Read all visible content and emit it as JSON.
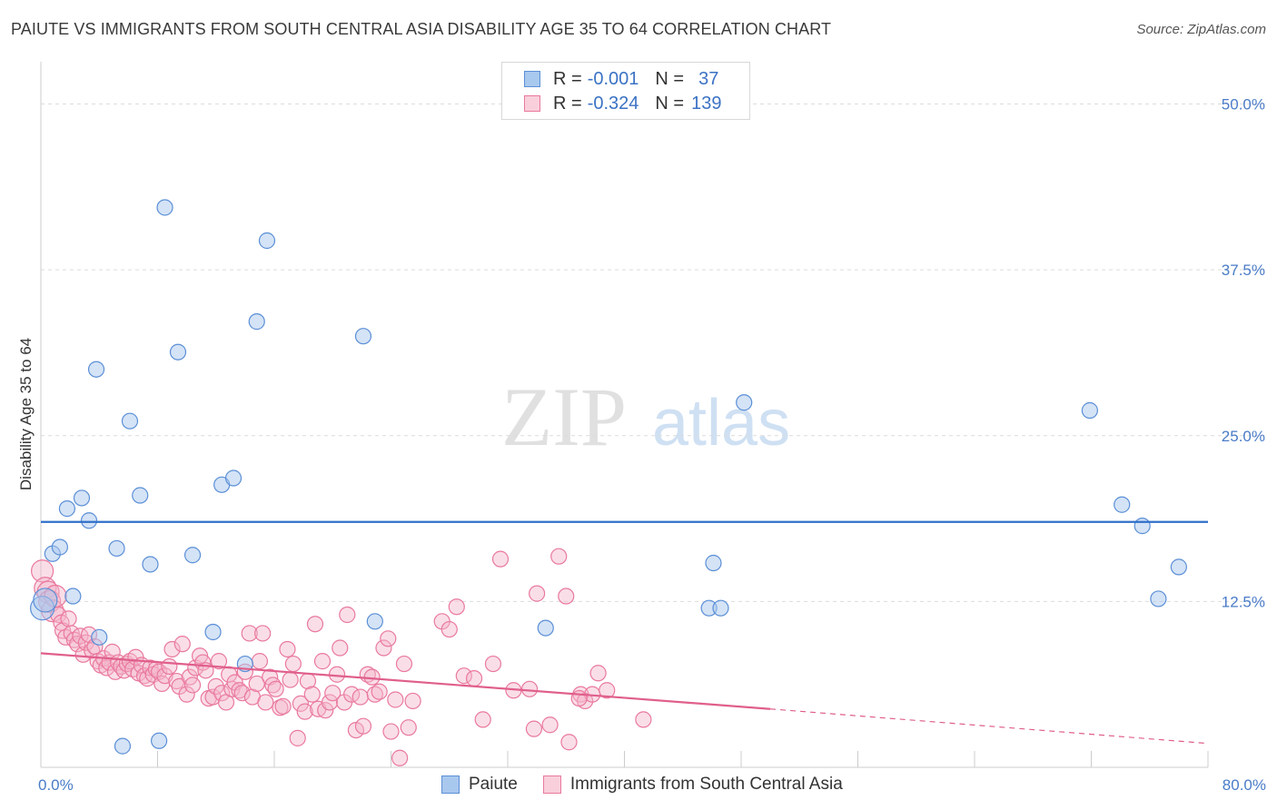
{
  "title": "PAIUTE VS IMMIGRANTS FROM SOUTH CENTRAL ASIA DISABILITY AGE 35 TO 64 CORRELATION CHART",
  "source": "Source: ZipAtlas.com",
  "watermark": {
    "zip": "ZIP",
    "atlas": "atlas"
  },
  "colors": {
    "blue_fill": "#a9c8ee",
    "blue_stroke": "#5b8fd6",
    "blue_line": "#2f6fc9",
    "pink_fill": "#f5b6c9",
    "pink_stroke": "#e9799d",
    "pink_line": "#e05f8c",
    "tick_text": "#4a7cc7",
    "grid": "#dcdcdc"
  },
  "legend": {
    "rows": [
      {
        "r_label": "R =",
        "r_value": "-0.001",
        "n_label": "N =",
        "n_value": "37"
      },
      {
        "r_label": "R =",
        "r_value": "-0.324",
        "n_label": "N =",
        "n_value": "139"
      }
    ]
  },
  "chart_data": {
    "type": "scatter",
    "title": "PAIUTE VS IMMIGRANTS FROM SOUTH CENTRAL ASIA DISABILITY AGE 35 TO 64 CORRELATION CHART",
    "ylabel": "Disability Age 35 to 64",
    "xlabel": "",
    "xlim": [
      0,
      80
    ],
    "ylim": [
      0,
      52.5
    ],
    "x_tick_labels": [
      {
        "value": 0,
        "label": "0.0%"
      },
      {
        "value": 80,
        "label": "80.0%"
      }
    ],
    "y_tick_labels": [
      {
        "value": 12.5,
        "label": "12.5%"
      },
      {
        "value": 25,
        "label": "25.0%"
      },
      {
        "value": 37.5,
        "label": "37.5%"
      },
      {
        "value": 50,
        "label": "50.0%"
      }
    ],
    "x_minor_ticks": [
      0,
      8,
      16,
      24,
      32,
      40,
      48,
      56,
      64,
      72,
      80
    ],
    "grid": true,
    "series": [
      {
        "name": "Paiute",
        "color": "blue",
        "trend": {
          "x": [
            0,
            80
          ],
          "y": [
            18.5,
            18.5
          ],
          "dashed_after": null
        },
        "points": [
          [
            0.1,
            12.0
          ],
          [
            0.8,
            16.1
          ],
          [
            1.3,
            16.6
          ],
          [
            1.8,
            19.5
          ],
          [
            2.2,
            12.9
          ],
          [
            2.8,
            20.3
          ],
          [
            3.3,
            18.6
          ],
          [
            4.0,
            9.8
          ],
          [
            3.8,
            30.0
          ],
          [
            5.2,
            16.5
          ],
          [
            5.6,
            1.6
          ],
          [
            6.1,
            26.1
          ],
          [
            6.8,
            20.5
          ],
          [
            7.5,
            15.3
          ],
          [
            8.1,
            2.0
          ],
          [
            8.5,
            42.2
          ],
          [
            9.4,
            31.3
          ],
          [
            10.4,
            16.0
          ],
          [
            11.8,
            10.2
          ],
          [
            12.4,
            21.3
          ],
          [
            13.2,
            21.8
          ],
          [
            14.0,
            7.8
          ],
          [
            14.8,
            33.6
          ],
          [
            15.5,
            39.7
          ],
          [
            22.1,
            32.5
          ],
          [
            22.9,
            11.0
          ],
          [
            34.6,
            10.5
          ],
          [
            46.1,
            15.4
          ],
          [
            45.8,
            12.0
          ],
          [
            46.6,
            12.0
          ],
          [
            48.2,
            27.5
          ],
          [
            71.9,
            26.9
          ],
          [
            74.1,
            19.8
          ],
          [
            75.5,
            18.2
          ],
          [
            76.6,
            12.7
          ],
          [
            78.0,
            15.1
          ],
          [
            0.3,
            12.6
          ]
        ]
      },
      {
        "name": "Immigrants from South Central Asia",
        "color": "pink",
        "trend": {
          "x": [
            0,
            50
          ],
          "y": [
            8.6,
            4.4
          ],
          "dashed_to": [
            80,
            1.8
          ]
        },
        "points": [
          [
            0.1,
            14.8
          ],
          [
            0.3,
            13.5
          ],
          [
            0.5,
            13.2
          ],
          [
            0.6,
            12.5
          ],
          [
            0.8,
            11.8
          ],
          [
            1.0,
            12.9
          ],
          [
            1.2,
            11.5
          ],
          [
            1.4,
            10.9
          ],
          [
            1.5,
            10.3
          ],
          [
            1.7,
            9.8
          ],
          [
            1.9,
            11.2
          ],
          [
            2.1,
            10.1
          ],
          [
            2.3,
            9.6
          ],
          [
            2.5,
            9.3
          ],
          [
            2.7,
            9.9
          ],
          [
            2.9,
            8.5
          ],
          [
            3.1,
            9.4
          ],
          [
            3.3,
            10.0
          ],
          [
            3.5,
            8.8
          ],
          [
            3.7,
            9.1
          ],
          [
            3.9,
            8.0
          ],
          [
            4.1,
            7.7
          ],
          [
            4.3,
            8.2
          ],
          [
            4.5,
            7.5
          ],
          [
            4.7,
            7.9
          ],
          [
            4.9,
            8.7
          ],
          [
            5.1,
            7.2
          ],
          [
            5.3,
            7.9
          ],
          [
            5.5,
            7.6
          ],
          [
            5.7,
            7.3
          ],
          [
            5.9,
            7.8
          ],
          [
            6.1,
            8.0
          ],
          [
            6.3,
            7.4
          ],
          [
            6.5,
            8.3
          ],
          [
            6.7,
            7.1
          ],
          [
            6.9,
            7.7
          ],
          [
            7.1,
            6.9
          ],
          [
            7.3,
            6.7
          ],
          [
            7.5,
            7.5
          ],
          [
            7.7,
            7.0
          ],
          [
            7.9,
            7.4
          ],
          [
            8.1,
            7.2
          ],
          [
            8.3,
            6.3
          ],
          [
            8.5,
            6.9
          ],
          [
            8.8,
            7.6
          ],
          [
            9.0,
            8.9
          ],
          [
            9.3,
            6.5
          ],
          [
            9.5,
            6.1
          ],
          [
            9.7,
            9.3
          ],
          [
            10.0,
            5.5
          ],
          [
            10.2,
            6.8
          ],
          [
            10.4,
            6.2
          ],
          [
            10.6,
            7.5
          ],
          [
            10.9,
            8.4
          ],
          [
            11.1,
            7.9
          ],
          [
            11.3,
            7.3
          ],
          [
            11.5,
            5.2
          ],
          [
            11.8,
            5.3
          ],
          [
            12.0,
            6.1
          ],
          [
            12.2,
            8.0
          ],
          [
            12.4,
            5.6
          ],
          [
            12.7,
            4.9
          ],
          [
            12.9,
            7.0
          ],
          [
            13.1,
            5.9
          ],
          [
            13.3,
            6.4
          ],
          [
            13.6,
            5.8
          ],
          [
            13.8,
            5.6
          ],
          [
            14.0,
            7.2
          ],
          [
            14.3,
            10.1
          ],
          [
            14.5,
            5.3
          ],
          [
            14.8,
            6.3
          ],
          [
            15.0,
            8.0
          ],
          [
            15.2,
            10.1
          ],
          [
            15.4,
            4.9
          ],
          [
            15.7,
            6.8
          ],
          [
            15.9,
            6.2
          ],
          [
            16.1,
            5.9
          ],
          [
            16.4,
            4.5
          ],
          [
            16.6,
            4.6
          ],
          [
            16.9,
            8.9
          ],
          [
            17.1,
            6.6
          ],
          [
            17.3,
            7.8
          ],
          [
            17.6,
            2.2
          ],
          [
            17.8,
            4.8
          ],
          [
            18.1,
            4.2
          ],
          [
            18.3,
            6.5
          ],
          [
            18.6,
            5.5
          ],
          [
            18.8,
            10.8
          ],
          [
            19.0,
            4.4
          ],
          [
            19.3,
            8.0
          ],
          [
            19.5,
            4.3
          ],
          [
            19.8,
            4.9
          ],
          [
            20.0,
            5.6
          ],
          [
            20.3,
            7.0
          ],
          [
            20.5,
            9.0
          ],
          [
            20.8,
            4.9
          ],
          [
            21.0,
            11.5
          ],
          [
            21.3,
            5.5
          ],
          [
            21.6,
            2.8
          ],
          [
            21.9,
            5.3
          ],
          [
            22.1,
            3.1
          ],
          [
            22.4,
            7.0
          ],
          [
            22.7,
            6.8
          ],
          [
            22.9,
            5.5
          ],
          [
            23.2,
            5.7
          ],
          [
            23.5,
            9.0
          ],
          [
            23.8,
            9.7
          ],
          [
            24.0,
            2.7
          ],
          [
            24.3,
            5.1
          ],
          [
            24.6,
            0.7
          ],
          [
            24.9,
            7.8
          ],
          [
            25.2,
            3.0
          ],
          [
            25.5,
            5.0
          ],
          [
            27.5,
            11.0
          ],
          [
            28.5,
            12.1
          ],
          [
            28.0,
            10.4
          ],
          [
            29.0,
            6.9
          ],
          [
            29.7,
            6.7
          ],
          [
            30.3,
            3.6
          ],
          [
            31.0,
            7.8
          ],
          [
            31.5,
            15.7
          ],
          [
            32.4,
            5.8
          ],
          [
            33.5,
            5.9
          ],
          [
            33.8,
            2.9
          ],
          [
            34.0,
            13.1
          ],
          [
            35.5,
            15.9
          ],
          [
            34.9,
            3.2
          ],
          [
            36.0,
            12.9
          ],
          [
            36.2,
            1.9
          ],
          [
            37.0,
            5.5
          ],
          [
            37.3,
            5.0
          ],
          [
            37.8,
            5.5
          ],
          [
            38.2,
            7.1
          ],
          [
            38.8,
            5.8
          ],
          [
            41.3,
            3.6
          ],
          [
            36.9,
            5.2
          ]
        ]
      }
    ]
  }
}
